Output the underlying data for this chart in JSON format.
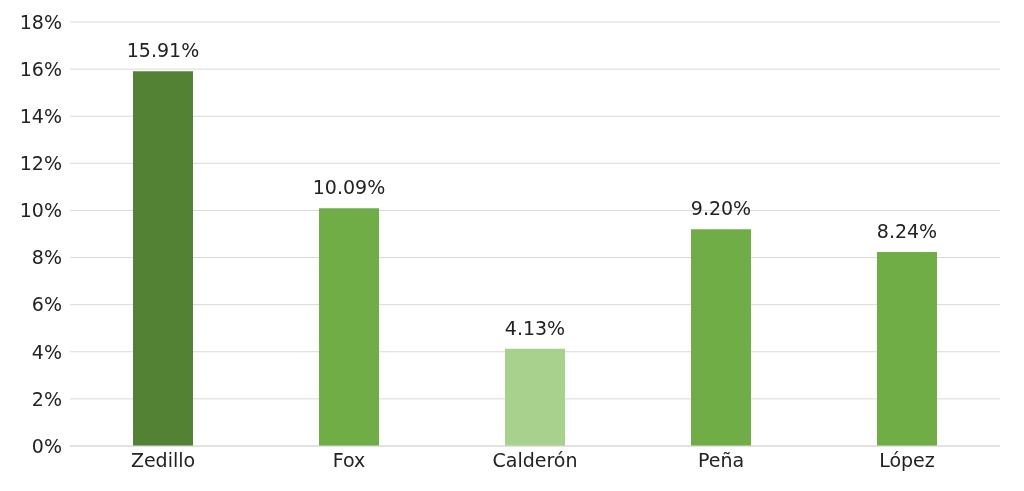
{
  "chart_data": {
    "type": "bar",
    "categories": [
      "Zedillo",
      "Fox",
      "Calderón",
      "Peña",
      "López"
    ],
    "values": [
      15.91,
      10.09,
      4.13,
      9.2,
      8.24
    ],
    "colors": [
      "#548235",
      "#70ad47",
      "#a9d18e",
      "#70ad47",
      "#70ad47"
    ],
    "value_labels": [
      "15.91%",
      "10.09%",
      "4.13%",
      "9.20%",
      "8.24%"
    ],
    "ylim": [
      0,
      18
    ],
    "yticks": [
      {
        "value": 0,
        "label": "0%"
      },
      {
        "value": 2,
        "label": "2%"
      },
      {
        "value": 4,
        "label": "4%"
      },
      {
        "value": 6,
        "label": "6%"
      },
      {
        "value": 8,
        "label": "8%"
      },
      {
        "value": 10,
        "label": "10%"
      },
      {
        "value": 12,
        "label": "12%"
      },
      {
        "value": 14,
        "label": "14%"
      },
      {
        "value": 16,
        "label": "16%"
      },
      {
        "value": 18,
        "label": "18%"
      }
    ],
    "grid": "y"
  }
}
